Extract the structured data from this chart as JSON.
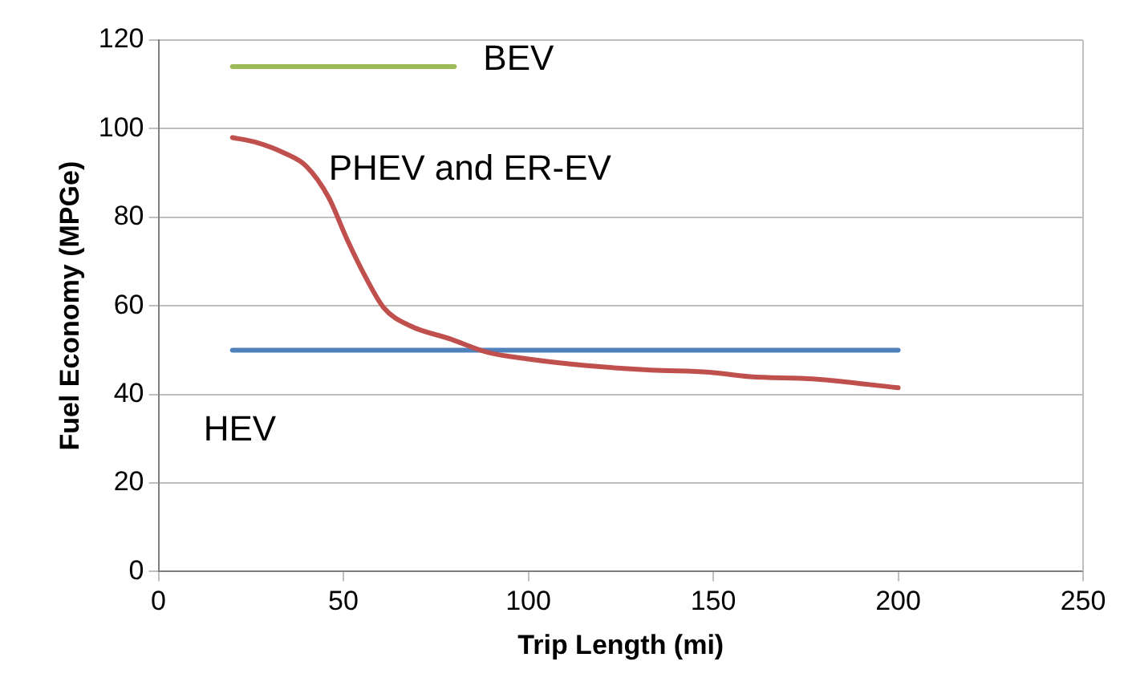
{
  "chart_data": {
    "type": "line",
    "xlabel": "Trip Length (mi)",
    "ylabel": "Fuel Economy (MPGe)",
    "xlim": [
      0,
      250
    ],
    "xticks": [
      0,
      50,
      100,
      150,
      200,
      250
    ],
    "ylim": [
      0,
      120
    ],
    "yticks": [
      0,
      20,
      40,
      60,
      80,
      100,
      120
    ],
    "grid": "y",
    "legend": false,
    "marker": "none",
    "line_style": "solid",
    "series": [
      {
        "name": "BEV",
        "color": "#9bbb59",
        "x": [
          20,
          80
        ],
        "values": [
          114,
          114
        ]
      },
      {
        "name": "PHEV and ER-EV",
        "color": "#c0504d",
        "x": [
          20,
          26,
          34,
          40,
          46,
          51,
          56,
          61,
          68,
          79,
          89,
          100,
          116,
          133,
          149,
          160,
          177,
          200
        ],
        "values": [
          98,
          97,
          94.5,
          91.5,
          84.5,
          75,
          66.5,
          59.5,
          55.5,
          52.5,
          49.5,
          48,
          46.5,
          45.5,
          45,
          44,
          43.5,
          41.5
        ]
      },
      {
        "name": "HEV",
        "color": "#4f81bd",
        "x": [
          20,
          200
        ],
        "values": [
          50,
          50
        ]
      }
    ]
  }
}
